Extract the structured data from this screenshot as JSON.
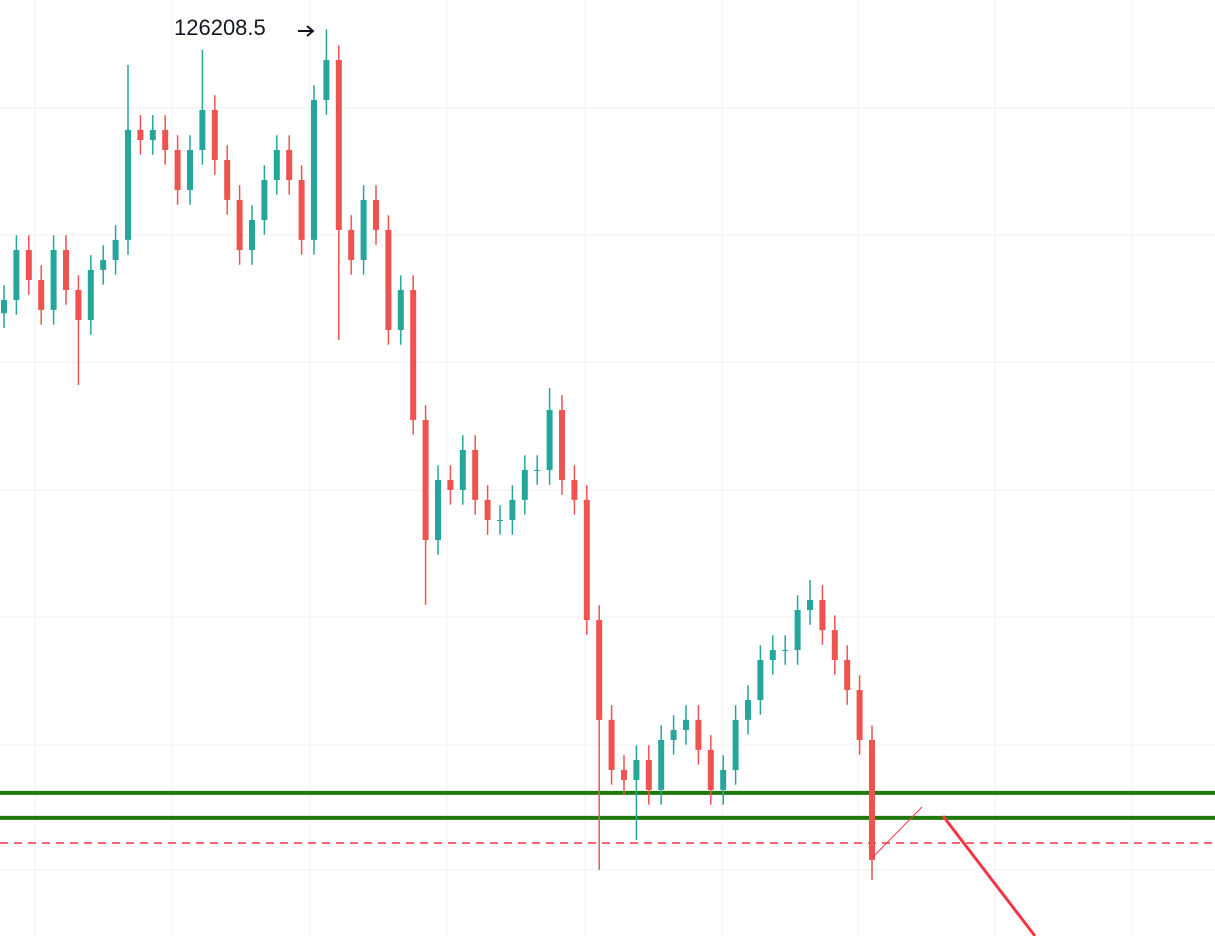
{
  "chart_data": {
    "type": "candlestick",
    "high_label": "126208.5",
    "ylim": [
      77000,
      127800
    ],
    "up_color": "#26a69a",
    "down_color": "#ef5350",
    "open": [
      110800,
      111520,
      114230,
      112600,
      110980,
      114230,
      112060,
      110430,
      113150,
      113690,
      114780,
      120750,
      120200,
      120750,
      119660,
      117490,
      119660,
      121830,
      119120,
      116950,
      114230,
      115860,
      118030,
      119660,
      118030,
      114780,
      122370,
      124540,
      115320,
      113690,
      116950,
      115320,
      109890,
      112060,
      105010,
      98490,
      101750,
      101210,
      103380,
      100670,
      99580,
      99580,
      100670,
      102290,
      102290,
      105550,
      101750,
      100670,
      94150,
      88730,
      86010,
      85470,
      86550,
      84930,
      87640,
      88180,
      88730,
      87100,
      84930,
      86010,
      88730,
      89810,
      91980,
      92520,
      92520,
      94690,
      95240,
      93600,
      91980,
      90350,
      87640
    ],
    "high": [
      112320,
      115030,
      115030,
      113400,
      115030,
      115030,
      112860,
      113950,
      114490,
      115580,
      124270,
      121550,
      121550,
      121550,
      120460,
      120460,
      125090,
      122630,
      119920,
      117750,
      116660,
      118830,
      120460,
      120460,
      118830,
      123170,
      126208.5,
      125340,
      116120,
      117750,
      117750,
      116120,
      112860,
      112860,
      105810,
      102550,
      102550,
      104180,
      104180,
      101470,
      100380,
      101470,
      103090,
      103090,
      106740,
      106350,
      102550,
      101470,
      94950,
      89530,
      86810,
      87350,
      87350,
      88440,
      88980,
      89530,
      89530,
      87900,
      86810,
      89530,
      90610,
      92780,
      93320,
      93320,
      95490,
      96320,
      96040,
      94400,
      92780,
      91150,
      88440
    ],
    "low": [
      110000,
      110720,
      111800,
      110180,
      110180,
      111260,
      106910,
      109630,
      112350,
      112890,
      113980,
      119400,
      119400,
      118860,
      116690,
      116690,
      118860,
      118320,
      116150,
      113430,
      113430,
      115060,
      117230,
      117230,
      113980,
      113980,
      121570,
      109350,
      112890,
      112890,
      114520,
      109090,
      109090,
      104210,
      94970,
      97690,
      100410,
      100410,
      99870,
      98780,
      98780,
      98780,
      99870,
      101490,
      101490,
      100950,
      99870,
      93350,
      80590,
      85210,
      84670,
      82210,
      84130,
      84130,
      86840,
      87380,
      86300,
      84130,
      84130,
      85210,
      87930,
      89010,
      91180,
      91720,
      91720,
      93890,
      92800,
      91180,
      89550,
      86840,
      80040
    ],
    "close": [
      111520,
      114230,
      112600,
      110980,
      114230,
      112060,
      110430,
      113150,
      113690,
      114780,
      120750,
      120200,
      120750,
      119660,
      117490,
      119660,
      121830,
      119120,
      116950,
      114230,
      115860,
      118030,
      119660,
      118030,
      114780,
      122370,
      124540,
      115320,
      113690,
      116950,
      115320,
      109890,
      112060,
      105010,
      98490,
      101750,
      101210,
      103380,
      100670,
      99580,
      99580,
      100670,
      102290,
      102290,
      105550,
      101750,
      100670,
      94150,
      88730,
      86010,
      85470,
      86550,
      84930,
      87640,
      88180,
      88730,
      87100,
      84930,
      86010,
      88730,
      89810,
      91980,
      92520,
      92520,
      94690,
      95240,
      93600,
      91980,
      90350,
      87640,
      81130
    ],
    "levels": [
      {
        "value": 84770,
        "color": "#1f7a0c",
        "style": "solid"
      },
      {
        "value": 83410,
        "color": "#1f7a0c",
        "style": "solid"
      },
      {
        "value": 82050,
        "color": "#f23645",
        "style": "dashed"
      }
    ]
  }
}
